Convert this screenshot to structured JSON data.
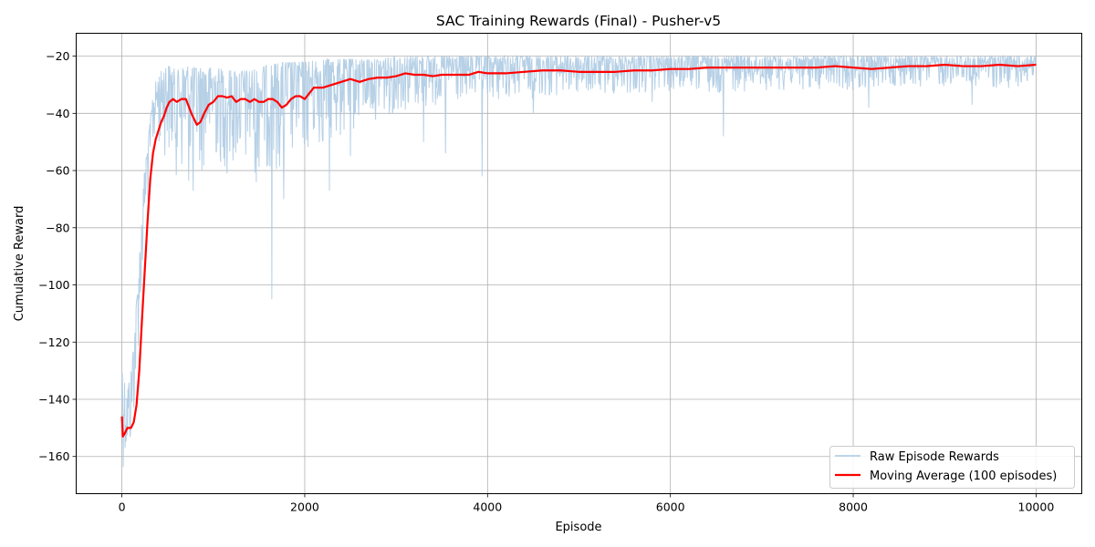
{
  "chart_data": {
    "type": "line",
    "title": "SAC Training Rewards (Final) - Pusher-v5",
    "xlabel": "Episode",
    "ylabel": "Cumulative Reward",
    "xlim": [
      -500,
      10500
    ],
    "ylim": [
      -173,
      -12
    ],
    "xticks": [
      0,
      2000,
      4000,
      6000,
      8000,
      10000
    ],
    "yticks": [
      -160,
      -140,
      -120,
      -100,
      -80,
      -60,
      -40,
      -20
    ],
    "grid": true,
    "legend_position": "bottom-right",
    "series": [
      {
        "name": "Raw Episode Rewards",
        "color": "#a9c8e2",
        "band": {
          "x": [
            0,
            50,
            100,
            150,
            200,
            250,
            300,
            350,
            400,
            450,
            500,
            550,
            600,
            700,
            800,
            900,
            1000,
            1200,
            1400,
            1600,
            1800,
            2000,
            2200,
            2400,
            2600,
            2800,
            3000,
            3500,
            4000,
            4500,
            5000,
            5500,
            6000,
            6500,
            7000,
            7500,
            8000,
            8500,
            9000,
            9500,
            10000
          ],
          "high": [
            -127,
            -138,
            -130,
            -110,
            -85,
            -58,
            -45,
            -30,
            -27,
            -24,
            -23,
            -24,
            -25,
            -23,
            -24,
            -24,
            -24,
            -25,
            -25,
            -23,
            -22,
            -22,
            -21,
            -21,
            -21,
            -21,
            -20,
            -20,
            -20,
            -20,
            -20,
            -20,
            -20,
            -20,
            -20,
            -20,
            -20,
            -20,
            -20,
            -20,
            -20
          ],
          "low": [
            -164,
            -164,
            -160,
            -140,
            -112,
            -88,
            -68,
            -55,
            -52,
            -55,
            -55,
            -60,
            -62,
            -67,
            -65,
            -60,
            -58,
            -60,
            -62,
            -60,
            -60,
            -55,
            -52,
            -50,
            -45,
            -42,
            -40,
            -38,
            -36,
            -35,
            -34,
            -34,
            -33,
            -33,
            -32,
            -32,
            -32,
            -31,
            -31,
            -31,
            -32
          ]
        },
        "spikes": [
          {
            "x": 780,
            "y": -67
          },
          {
            "x": 1150,
            "y": -61
          },
          {
            "x": 1470,
            "y": -64
          },
          {
            "x": 1640,
            "y": -105
          },
          {
            "x": 1770,
            "y": -70
          },
          {
            "x": 2270,
            "y": -67
          },
          {
            "x": 2500,
            "y": -55
          },
          {
            "x": 3300,
            "y": -50
          },
          {
            "x": 3540,
            "y": -54
          },
          {
            "x": 3940,
            "y": -62
          },
          {
            "x": 4500,
            "y": -40
          },
          {
            "x": 5800,
            "y": -36
          },
          {
            "x": 6580,
            "y": -48
          },
          {
            "x": 8170,
            "y": -38
          },
          {
            "x": 9300,
            "y": -37
          }
        ]
      },
      {
        "name": "Moving Average (100 episodes)",
        "color": "#ff0000",
        "x": [
          0,
          10,
          30,
          60,
          100,
          130,
          160,
          190,
          220,
          250,
          280,
          310,
          340,
          370,
          400,
          430,
          460,
          490,
          520,
          560,
          600,
          650,
          700,
          760,
          820,
          860,
          900,
          950,
          1000,
          1050,
          1100,
          1150,
          1200,
          1250,
          1300,
          1350,
          1400,
          1450,
          1500,
          1550,
          1600,
          1650,
          1700,
          1750,
          1800,
          1850,
          1900,
          1950,
          2000,
          2050,
          2100,
          2200,
          2300,
          2400,
          2500,
          2600,
          2700,
          2800,
          2900,
          3000,
          3100,
          3200,
          3300,
          3400,
          3500,
          3600,
          3700,
          3800,
          3900,
          4000,
          4200,
          4400,
          4600,
          4800,
          5000,
          5200,
          5400,
          5600,
          5800,
          6000,
          6200,
          6400,
          6600,
          6800,
          7000,
          7200,
          7400,
          7600,
          7800,
          8000,
          8200,
          8400,
          8600,
          8800,
          9000,
          9200,
          9400,
          9600,
          9800,
          10000
        ],
        "y": [
          -146,
          -153,
          -152,
          -150,
          -150,
          -148,
          -142,
          -130,
          -112,
          -95,
          -78,
          -63,
          -54,
          -49,
          -46,
          -43,
          -41,
          -38,
          -36,
          -35,
          -36,
          -35,
          -35,
          -40,
          -44,
          -43,
          -40,
          -37,
          -36,
          -34,
          -34,
          -34.5,
          -34,
          -36,
          -35,
          -35,
          -36,
          -35,
          -36,
          -36,
          -35,
          -35,
          -36,
          -38,
          -37,
          -35,
          -34,
          -34,
          -35,
          -33,
          -31,
          -31,
          -30,
          -29,
          -28,
          -29,
          -28,
          -27.5,
          -27.5,
          -27,
          -26,
          -26.5,
          -26.5,
          -27,
          -26.5,
          -26.5,
          -26.5,
          -26.5,
          -25.5,
          -26,
          -26,
          -25.5,
          -25,
          -25,
          -25.5,
          -25.5,
          -25.5,
          -25,
          -25,
          -24.5,
          -24.5,
          -24,
          -24,
          -24,
          -24,
          -24,
          -24,
          -24,
          -23.5,
          -24,
          -24.5,
          -24,
          -23.5,
          -23.5,
          -23,
          -23.5,
          -23.5,
          -23,
          -23.5,
          -23
        ]
      }
    ]
  }
}
